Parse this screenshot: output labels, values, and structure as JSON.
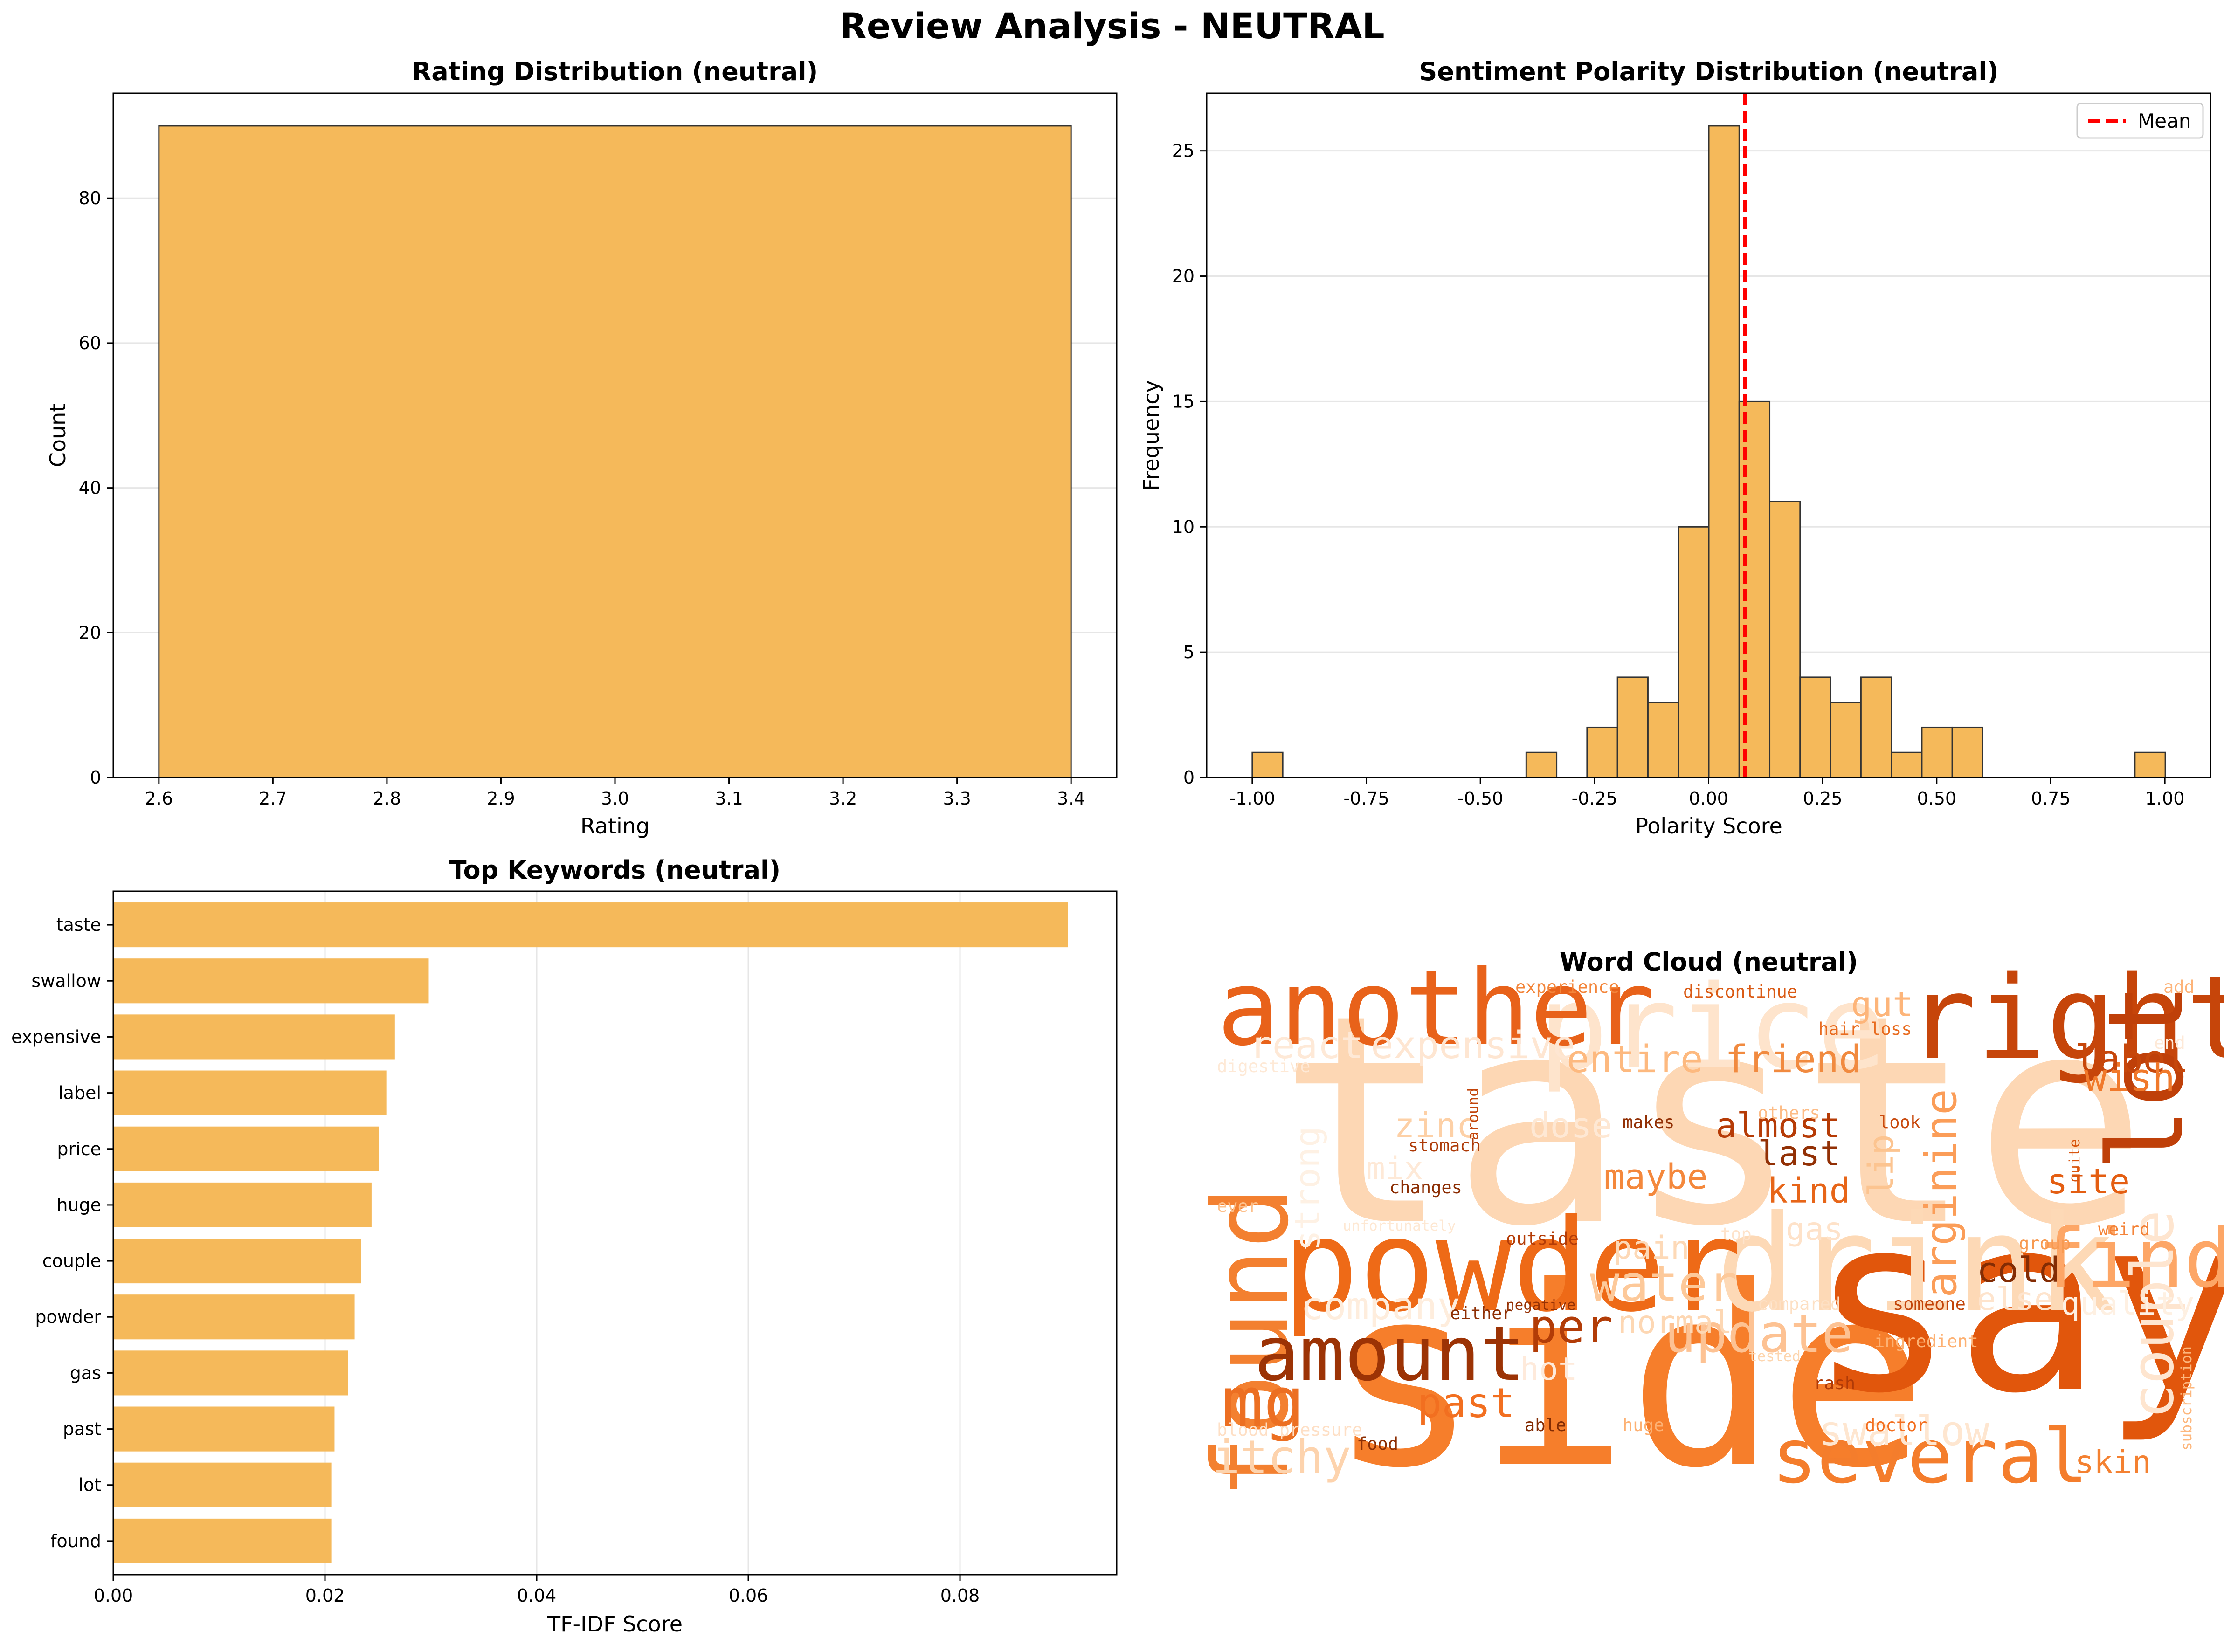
{
  "figure": {
    "title": "Review Analysis - NEUTRAL"
  },
  "chart_data": [
    {
      "id": "rating",
      "type": "bar",
      "title": "Rating Distribution (neutral)",
      "xlabel": "Rating",
      "ylabel": "Count",
      "bars": [
        {
          "x0": 2.6,
          "x1": 3.4,
          "value": 90
        }
      ],
      "xlim": [
        2.56,
        3.44
      ],
      "ylim": [
        0,
        94.5
      ],
      "xticks": [
        "2.6",
        "2.7",
        "2.8",
        "2.9",
        "3.0",
        "3.1",
        "3.2",
        "3.3",
        "3.4"
      ],
      "xtick_values": [
        2.6,
        2.7,
        2.8,
        2.9,
        3.0,
        3.1,
        3.2,
        3.3,
        3.4
      ],
      "yticks": [
        "0",
        "20",
        "40",
        "60",
        "80"
      ],
      "ytick_values": [
        0,
        20,
        40,
        60,
        80
      ],
      "grid": "y",
      "color": "#f5b95a"
    },
    {
      "id": "polarity",
      "type": "bar",
      "title": "Sentiment Polarity Distribution (neutral)",
      "xlabel": "Polarity Score",
      "ylabel": "Frequency",
      "bin_start": -1.0,
      "bin_width": 0.0667,
      "counts": [
        1,
        0,
        0,
        0,
        0,
        0,
        0,
        0,
        0,
        1,
        0,
        2,
        4,
        3,
        10,
        26,
        15,
        11,
        4,
        3,
        4,
        1,
        2,
        2,
        0,
        0,
        0,
        0,
        0,
        1
      ],
      "mean": 0.08,
      "legend": {
        "label": "Mean",
        "placement": "top-right"
      },
      "xlim": [
        -1.1,
        1.1
      ],
      "ylim": [
        0,
        27.3
      ],
      "xticks": [
        "-1.00",
        "-0.75",
        "-0.50",
        "-0.25",
        "0.00",
        "0.25",
        "0.50",
        "0.75",
        "1.00"
      ],
      "xtick_values": [
        -1.0,
        -0.75,
        -0.5,
        -0.25,
        0.0,
        0.25,
        0.5,
        0.75,
        1.0
      ],
      "yticks": [
        "0",
        "5",
        "10",
        "15",
        "20",
        "25"
      ],
      "ytick_values": [
        0,
        5,
        10,
        15,
        20,
        25
      ],
      "grid": "y",
      "color": "#f5b95a",
      "mean_color": "#ff0000"
    },
    {
      "id": "keywords",
      "type": "bar",
      "orientation": "horizontal",
      "title": "Top Keywords (neutral)",
      "xlabel": "TF-IDF Score",
      "categories": [
        "taste",
        "swallow",
        "expensive",
        "label",
        "price",
        "huge",
        "couple",
        "powder",
        "gas",
        "past",
        "lot",
        "found"
      ],
      "values": [
        0.0902,
        0.0298,
        0.0266,
        0.0258,
        0.0251,
        0.0244,
        0.0234,
        0.0228,
        0.0222,
        0.0209,
        0.0206,
        0.0206
      ],
      "xlim": [
        0,
        0.0948
      ],
      "xticks": [
        "0.00",
        "0.02",
        "0.04",
        "0.06",
        "0.08"
      ],
      "xtick_values": [
        0,
        0.02,
        0.04,
        0.06,
        0.08
      ],
      "grid": "x",
      "color": "#f5b95a"
    },
    {
      "id": "wordcloud",
      "type": "wordcloud",
      "title": "Word Cloud (neutral)",
      "colormap": "Oranges",
      "words": [
        {
          "text": "taste",
          "weight": 1.0,
          "color": "#fdd7b4"
        },
        {
          "text": "side",
          "weight": 0.86,
          "color": "#f67e2b"
        },
        {
          "text": "say",
          "weight": 0.84,
          "color": "#e1560c"
        },
        {
          "text": "drink",
          "weight": 0.46,
          "color": "#fdd9b6"
        },
        {
          "text": "powder",
          "weight": 0.44,
          "color": "#ee6a17"
        },
        {
          "text": "price",
          "weight": 0.4,
          "color": "#fee4cc"
        },
        {
          "text": "right",
          "weight": 0.4,
          "color": "#c6450a"
        },
        {
          "text": "another",
          "weight": 0.36,
          "color": "#e8621a"
        },
        {
          "text": "found",
          "weight": 0.36,
          "color": "#f38030"
        },
        {
          "text": "lot",
          "weight": 0.36,
          "color": "#bf4009"
        },
        {
          "text": "find",
          "weight": 0.28,
          "color": "#fda666"
        },
        {
          "text": "several",
          "weight": 0.26,
          "color": "#f47d2c"
        },
        {
          "text": "amount",
          "weight": 0.26,
          "color": "#9c3305"
        },
        {
          "text": "mg",
          "weight": 0.24,
          "color": "#ec6f22"
        },
        {
          "text": "couple",
          "weight": 0.2,
          "color": "#fee5cf"
        },
        {
          "text": "update",
          "weight": 0.18,
          "color": "#fdc293"
        },
        {
          "text": "water",
          "weight": 0.17,
          "color": "#fdc99a"
        },
        {
          "text": "per",
          "weight": 0.16,
          "color": "#b23c07"
        },
        {
          "text": "itchy",
          "weight": 0.16,
          "color": "#fdd3ad"
        },
        {
          "text": "arginine",
          "weight": 0.15,
          "color": "#fb9d58"
        },
        {
          "text": "past",
          "weight": 0.14,
          "color": "#f26f20"
        },
        {
          "text": "swallow",
          "weight": 0.14,
          "color": "#fee6d0"
        },
        {
          "text": "react",
          "weight": 0.13,
          "color": "#fee9d7"
        },
        {
          "text": "expensive",
          "weight": 0.13,
          "color": "#fee6d2"
        },
        {
          "text": "entire",
          "weight": 0.13,
          "color": "#fdb97f"
        },
        {
          "text": "friend",
          "weight": 0.13,
          "color": "#f18a3f"
        },
        {
          "text": "label",
          "weight": 0.13,
          "color": "#c6470b"
        },
        {
          "text": "wish",
          "weight": 0.13,
          "color": "#f0792b"
        },
        {
          "text": "company",
          "weight": 0.13,
          "color": "#feeddd"
        },
        {
          "text": "strong",
          "weight": 0.12,
          "color": "#fef1e4"
        },
        {
          "text": "almost",
          "weight": 0.12,
          "color": "#b63b06"
        },
        {
          "text": "last",
          "weight": 0.12,
          "color": "#923005"
        },
        {
          "text": "gut",
          "weight": 0.12,
          "color": "#fdb57a"
        },
        {
          "text": "lip",
          "weight": 0.12,
          "color": "#fcc490"
        },
        {
          "text": "site",
          "weight": 0.12,
          "color": "#e45e12"
        },
        {
          "text": "kind",
          "weight": 0.12,
          "color": "#e76518"
        },
        {
          "text": "maybe",
          "weight": 0.12,
          "color": "#f4883c"
        },
        {
          "text": "cold",
          "weight": 0.12,
          "color": "#832c04"
        },
        {
          "text": "zinc",
          "weight": 0.12,
          "color": "#fdd0a6"
        },
        {
          "text": "dose",
          "weight": 0.12,
          "color": "#fee8d4"
        },
        {
          "text": "mix",
          "weight": 0.11,
          "color": "#fee9d7"
        },
        {
          "text": "pain",
          "weight": 0.11,
          "color": "#fdd9b7"
        },
        {
          "text": "normal",
          "weight": 0.11,
          "color": "#fdd7b3"
        },
        {
          "text": "hot",
          "weight": 0.11,
          "color": "#feeadb"
        },
        {
          "text": "gas",
          "weight": 0.11,
          "color": "#fee2c9"
        },
        {
          "text": "else",
          "weight": 0.11,
          "color": "#fee4cd"
        },
        {
          "text": "quality",
          "weight": 0.11,
          "color": "#fef0e2"
        },
        {
          "text": "skin",
          "weight": 0.11,
          "color": "#f48131"
        },
        {
          "text": "experience",
          "weight": 0.06,
          "color": "#f3853a"
        },
        {
          "text": "discontinue",
          "weight": 0.06,
          "color": "#da5a14"
        },
        {
          "text": "hair loss",
          "weight": 0.06,
          "color": "#e86c20"
        },
        {
          "text": "add",
          "weight": 0.06,
          "color": "#fdb47a"
        },
        {
          "text": "digestive",
          "weight": 0.06,
          "color": "#fee9d6"
        },
        {
          "text": "end",
          "weight": 0.06,
          "color": "#fee9d7"
        },
        {
          "text": "around",
          "weight": 0.05,
          "color": "#c24409"
        },
        {
          "text": "stomach",
          "weight": 0.06,
          "color": "#ad3a07"
        },
        {
          "text": "makes",
          "weight": 0.06,
          "color": "#923005"
        },
        {
          "text": "others",
          "weight": 0.06,
          "color": "#fdbc86"
        },
        {
          "text": "look",
          "weight": 0.06,
          "color": "#c94a0e"
        },
        {
          "text": "quite",
          "weight": 0.05,
          "color": "#d9560f"
        },
        {
          "text": "changes",
          "weight": 0.06,
          "color": "#8c2e04"
        },
        {
          "text": "ever",
          "weight": 0.06,
          "color": "#fdc08b"
        },
        {
          "text": "unfortunately",
          "weight": 0.05,
          "color": "#fee8d3"
        },
        {
          "text": "outside",
          "weight": 0.06,
          "color": "#b43c07"
        },
        {
          "text": "top",
          "weight": 0.06,
          "color": "#fee3cb"
        },
        {
          "text": "weird",
          "weight": 0.06,
          "color": "#f4843a"
        },
        {
          "text": "group",
          "weight": 0.06,
          "color": "#f79a51"
        },
        {
          "text": "either",
          "weight": 0.06,
          "color": "#8e2f04"
        },
        {
          "text": "negative",
          "weight": 0.05,
          "color": "#963205"
        },
        {
          "text": "compared",
          "weight": 0.06,
          "color": "#fde0c4"
        },
        {
          "text": "someone",
          "weight": 0.06,
          "color": "#c24409"
        },
        {
          "text": "ingredient",
          "weight": 0.06,
          "color": "#fdb173"
        },
        {
          "text": "tested",
          "weight": 0.05,
          "color": "#fdd5ae"
        },
        {
          "text": "rash",
          "weight": 0.06,
          "color": "#b03a07"
        },
        {
          "text": "subscription",
          "weight": 0.05,
          "color": "#fdb77d"
        },
        {
          "text": "blood pressure",
          "weight": 0.06,
          "color": "#fedfc5"
        },
        {
          "text": "able",
          "weight": 0.06,
          "color": "#832c04"
        },
        {
          "text": "huge",
          "weight": 0.06,
          "color": "#fdb173"
        },
        {
          "text": "doctor",
          "weight": 0.06,
          "color": "#f36f20"
        },
        {
          "text": "food",
          "weight": 0.06,
          "color": "#8c2e04"
        }
      ]
    }
  ]
}
